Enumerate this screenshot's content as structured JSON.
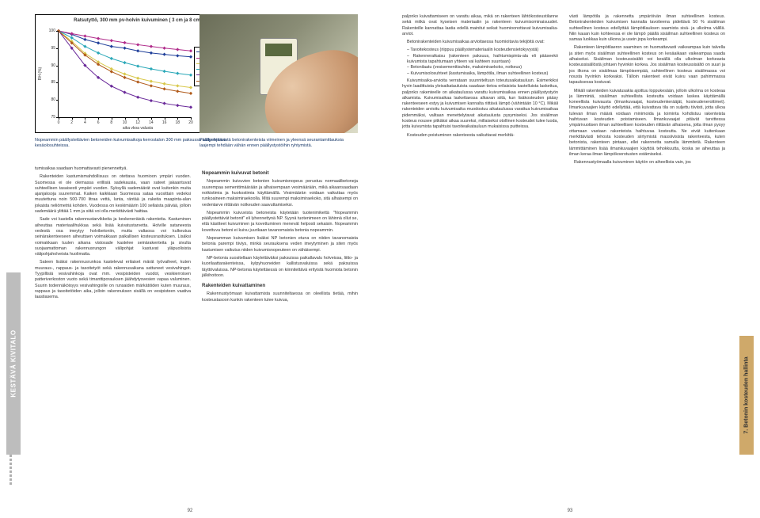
{
  "chart": {
    "title": "Ratsutyttö, 300 mm pv-holvin kuivuminen ( 3 cm ja 8 cm)",
    "ylabel": "RH (%)",
    "xlabel": "aika vkoa valusta",
    "ylim": [
      75,
      100
    ],
    "ytick_step": 5,
    "xlim": [
      0,
      20
    ],
    "xtick_step": 2,
    "series": [
      {
        "name": "NP40 3 cm",
        "color": "#1f3f9a",
        "values": [
          100,
          99,
          97.5,
          96.5,
          95.5,
          95,
          94.2,
          93.6,
          93.2,
          92.8,
          92.5
        ]
      },
      {
        "name": "NP40 8 cm",
        "color": "#b02a8a",
        "values": [
          100,
          99.2,
          98.5,
          97.8,
          97.2,
          96.6,
          96,
          95.5,
          95,
          94.6,
          94.2
        ]
      },
      {
        "name": "NP35 3 cm",
        "color": "#d8c84a",
        "values": [
          100,
          97,
          93.5,
          91,
          89,
          87.5,
          86.3,
          85.4,
          84.7,
          84.1,
          83.6
        ]
      },
      {
        "name": "NP35 8 cm",
        "color": "#2aa8b8",
        "values": [
          100,
          98,
          95.5,
          93.6,
          92,
          90.8,
          89.8,
          89,
          88.3,
          87.7,
          87.2
        ]
      },
      {
        "name": "NP30 3 cm",
        "color": "#6a2a9a",
        "values": [
          100,
          95,
          90,
          86.5,
          84,
          82.2,
          80.8,
          79.8,
          79,
          78.4,
          77.9
        ]
      },
      {
        "name": "NP30 8 cm",
        "color": "#b05a1a",
        "values": [
          100,
          96.5,
          93,
          90.3,
          88.2,
          86.5,
          85.2,
          84.1,
          83.2,
          82.5,
          81.9
        ]
      }
    ]
  },
  "caption_left": "Nopeammin päällystettävien betoneiden kuivumisaikoja kerrostalon 300 mm paksussa välipohjassa kesäolosuhteissa.",
  "caption_right": "Päällystettävistä betonirakenteista viimeinen ja yleensä seurantamittauksia laajempi tehdään vähän ennen päällystystöihin ryhtymistä.",
  "tab_left": "KESTÄVÄ KIVITALO",
  "tab_right": "7.  Betonin kosteuden hallinta",
  "pagenum_left": "92",
  "pagenum_right": "93",
  "headings": {
    "h1": "Nopeammin kuivuvat betonit",
    "h2": "Rakenteiden kuivattaminen"
  },
  "text": {
    "l1p1": "tumisaikaa saadaan huomattavasti pienennettyä.",
    "l1p2": "Rakenteiden kastumismahdollisuus on otettava huomioon ympäri vuoden. Suomessa ei ole olemassa erillisiä sadekausia, vaan sateet jakaantuvat suhteellisen tasaisesti ympäri vuoden. Syksyllä sademäärät ovat kuitenkin muita ajanjaksoja suuremmat. Kaiken kaikkiaan Suomessa sataa vuosittain vedeksi muutettuna noin 500-700 litraa vettä, lunta, räntää ja rakeita maapinta-alan jokaista neliömetriä kohden. Vuodessa on keskimäärin 100 sellaista päivää, jolloin sademäärä ylittää 1 mm ja siitä voi olla merkittävästi haittaa.",
    "l1p3": "Sade voi kastella rakennustarvikkeita ja keskeneräisiä rakenteita. Kastuminen aiheuttaa materiaalihukkaa sekä lisää kuivatustarvetta. Holville sataneesta vedestä osa imeytyy holvibetoniin, mutta valtaosa voi kulkeutua seinärakenteeseen aiheuttaen voimakkaan paikallisen kosteusrasituksen. Lisäksi voimakkaan tuulen aikana vistosade kastelee seinärakenteita ja sivulta suojaamattoman rakennusrungon välipohjat kastuvat yläpuolisista välipohjaholveista huolimatta.",
    "l1p4": "Sateen lisäksi rakennusrunkoa kastelevat erilaiset märät työvaiheet, kuten muuraus-, rappaus- ja tasoitetyöt sekä rakennusaikana sattuneet vesivahingot. Tyypillisiä vesivahinkoja ovat mm. vesipisteiden vuodot, vesikierroisen patteriverkoston vuoto sekä timanttiporauksen jäähdytysvesien vapaa valuminen. Suurin todennäköisyys vesivahingoille on runsaiden märkätöiden kuten muuraus, rappaus ja tasoitetöiden aika, jolloin rakennuksen sisällä on vesipisteen vaativa laastiasema.",
    "l2p1": "Nopeammin kuivuvien betonien kuivumisnopeus perustuu normaalibetoneja suurempaa sementtimäärään ja alhaisempaan vesimäärään, mikä aikaansaadaan notkistimia ja huokostimia käyttämällä. Vesimäärän voidaan vaikuttaa myös runkoaineen maksimiraekoolla. Mitä suurempi maksimiraekoko, sitä alhaisempi on vedentarve riittävän notkeuden saavuttamiseksi.",
    "l2p2": "Nopeammin kuivuvista betoneista käytetään tuotenimikettä \"Nopeammin päällystettävät betonit\" eli lyhennettynä NP. Syynä tuotenimeen on lähinnä ollut se, että käsitteet kuivuminen ja kovettuminen menevät helposti sekaisin. Nopeammin kovettuva betoni ei kuivu juurikaan tavanomaista betonia nopeammin.",
    "l2p3": "Nopeamman kuivumisen lisäksi NP betonien etuna on niiden tavanomaista betonia parempi tiiviys, minkä seurauksena veden imeytyminen ja siten myös kastumisen vaikutus niiden kuivumisnopeuteen on vähäisempi.",
    "l2p4": "NP-betonia suositellaan käytettäväksi paksuissa paikallavalu holveissa, liitto- ja kuorilaattarakenteissa, kylpyhuoneiden kallistusvaluissa sekä paksuissa täyttövaluissa. NP-betonia käytettäessä on kiinnitettävä erityistä huomiota betonin jälkihoitoon.",
    "l2p5": "Rakennustyömaan kuivattamista suunniteltaessa on oleellista tietää, mihin kosteustasoon kunkin rakenteen tulee kuivua,",
    "r1p1": "paljonko kuivattamiseen on varattu aikaa, mikä on rakenteen lähtökosteustilanne sekä mitkä ovat kyseisen materiaalin ja rakenteen kuivumisominaisuudet. Rakenteille kannattaa laatia edellä mainitut seikat huomioonottavat kuivumisaika-arviot.",
    "r1p2": "Betonirakenteiden kuivumisaikaa arvioitaessa huomioitavia tekijöitä ovat:",
    "r1li1": "Tavoitekosteus (riippuu päällystemateriaalin kosteudensietokyvystä)",
    "r1li2": "Rakenneratkaisu (rakenteen paksuus, haihtumispinta-ala eli pääseekö kuivumista tapahtumaan yhteen vai kahteen suuntaan)",
    "r1li3": "Betonilaatu (vesisementtisuhde, maksimiraekoko, notkeus)",
    "r1li4": "Kuivumisolosuhteet (kastumisaika, lämpötila, ilman suhteellinen kosteus)",
    "r1p3": "Kuivumisaika-arvioita verrataan suunniteltuun toteutusaikatauluun. Esimerkiksi hyvin laadittuista yleisaikatauluista saadaan tietoa erilaisista kastelluista laskettua, paljonko rakenteelle on aikataulussa varattu kuivumisaikaa ennen päällystystyön alkamista. Kuivumisaikaa laskettaessa alkavan siitä, kun lisäkosteuden pääsy rakenteeseen estyy ja kuivumisen kannalta riittävä lämpö (vähintään 10 °C). Mikäli rakenteiden arvioitu kuivumisaika muodostuu aikataulussa varattua kuivumisaikaa pidemmäksi, valitaan menettelytavat aikataulusta pysymiseksi. Jos sisäilman kosteus nousee pitkäksi aikaa suureksi, millaiseksi otollinen kosteudet tulee luoda, jotta kuivumista tapahtuisi tavoiteaikatauluun mukaisissa puitteissa.",
    "r1p4": "Kosteuden poistuminen rakenteesta vaikuttavat merkittä-",
    "r2p1": "västi lämpötila ja rakennetta ympäröivän ilman suhteellinen kosteus. Betonirakenteiden kuivumisen kannalta tavoiteena pidettävä 50 % sisäilman suhteellinen kosteus edellyttää lämpötilauksen saamista sisä- ja ulkolma välillä. Niin kauan kuin kohteessa ei ole lämpö päällä sisäilman suhteellinen kosteus on samaa luokkaa kuin ulkona ja usein jopa korkeampi.",
    "r2p2": "Rakenteen lämpötilaeron saaminen on huomattavasti vaikeampaa kuin talvella ja siten myös sisäilman suhteellinen kosteus on kesäaikaan vaikeampaa saada alhaiseksi. Sisäilman kosteussisältö voi kesällä olla ulkolman korkeasta kosteussisällöstä johtuen hyvinkin korkea. Jos sisäilman kosteussisältö on suuri ja jos ilkona on sisäilmaa lämpöisempää, suhteellinen kosteus sisäilmassa voi nousta hyvinkin korkeaksi. Tälloin rakenteet eivät kuivu vaan pahimmassa tapauksessa kostuvat.",
    "r2p3": "Mikäli rakenteiden kuivatusakia ajoittuu loppukesään, jolloin ulkolma on kosteaa ja lämmintä, sisäilman suhteellista kosteutta voidaan laskea käyttämällä koneellista kuivausta (ilmankuvaajat, kosteudenkerääjät, kosteudenerottimet). Ilmankuvaajien käyttö edellyttää, että kuivattava tila on suljettu tiiviisti, jotta ulkoa tulevan ilman määrä voidaan minimoida ja toiminta kohdistuu rakenteista haihtuvan kosteuden poistamiseen. Ilmankuvaajat pitävät tarvittessa ympärivuotisen ilman suhteellisen kosteuden riittävän alhaisena, jotta ilman pysyy ottamaan vastaan rakenteista haihtuvaa kosteutta. Ne eivät kuitenkaan merkittävästi tehosta kosteuden siirtymistä massiivisista rakenteesta, kuten betonista, rakenteen pintaan, ellei rakennetta samalla lämmitetä. Rakenteen lämmittäminen lisää ilmankuvaajien käyttöä tehokkuutta, koska se aiheuttaa ja ilman keraa ilman lämpökoerotusten estämiseksi.",
    "r2p4": "Rakennustyömaalla kuivuminen käytön on aiheellista vain, jos"
  }
}
